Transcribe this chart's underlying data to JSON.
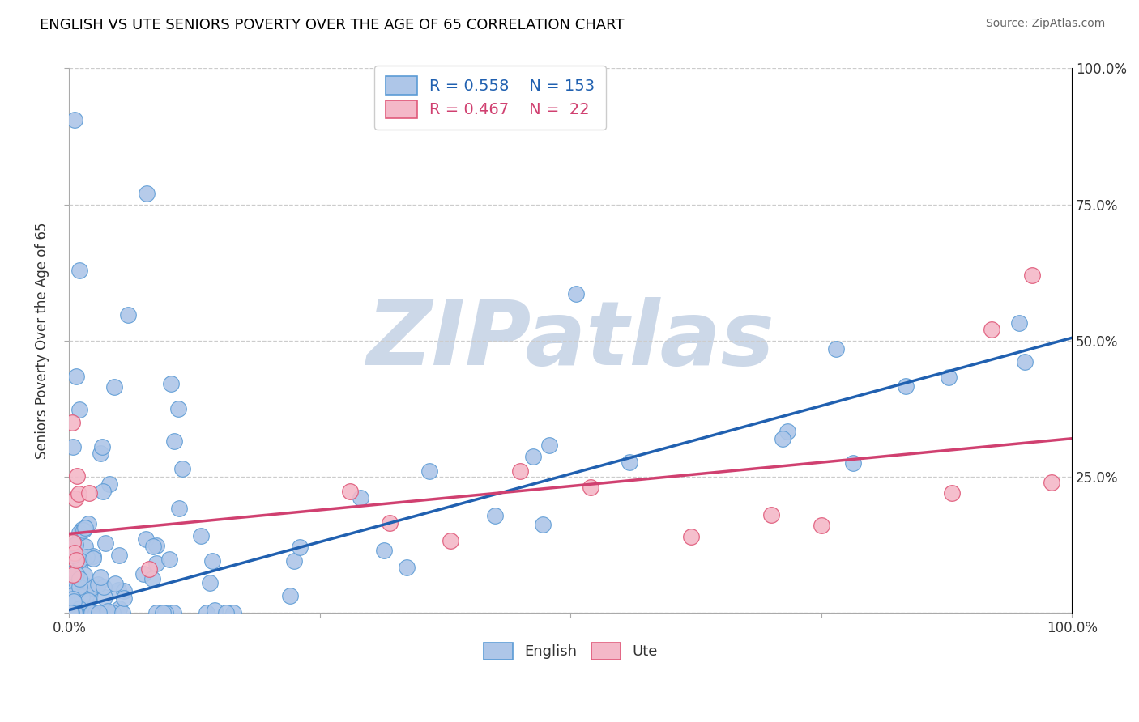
{
  "title": "ENGLISH VS UTE SENIORS POVERTY OVER THE AGE OF 65 CORRELATION CHART",
  "source": "Source: ZipAtlas.com",
  "ylabel": "Seniors Poverty Over the Age of 65",
  "xlim": [
    0,
    1
  ],
  "ylim": [
    0,
    1
  ],
  "english_R": 0.558,
  "english_N": 153,
  "ute_R": 0.467,
  "ute_N": 22,
  "english_color": "#aec6e8",
  "ute_color": "#f4b8c8",
  "english_edge_color": "#5b9bd5",
  "ute_edge_color": "#e05a7a",
  "english_line_color": "#2060b0",
  "ute_line_color": "#d04070",
  "watermark_color": "#ccd8e8",
  "title_fontsize": 13,
  "background_color": "#ffffff",
  "eng_line_slope": 0.5,
  "eng_line_intercept": 0.005,
  "ute_line_slope": 0.175,
  "ute_line_intercept": 0.145,
  "seed": 12345
}
